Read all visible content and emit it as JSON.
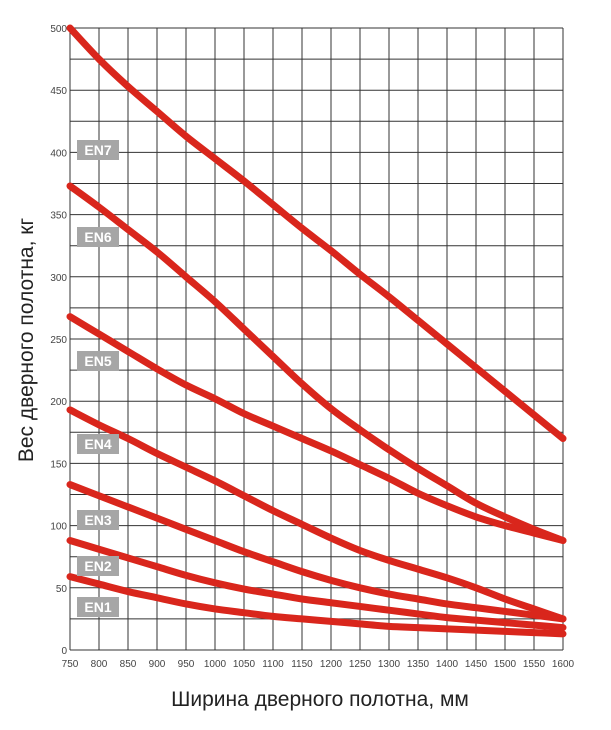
{
  "chart_data": {
    "type": "line",
    "xlabel": "Ширина дверного полотна, мм",
    "ylabel": "Вес дверного полотна, кг",
    "xlim": [
      750,
      1600
    ],
    "ylim": [
      0,
      500
    ],
    "x_ticks": [
      750,
      800,
      850,
      900,
      950,
      1000,
      1050,
      1100,
      1150,
      1200,
      1250,
      1300,
      1350,
      1400,
      1450,
      1500,
      1550,
      1600
    ],
    "y_ticks": [
      0,
      50,
      100,
      150,
      200,
      250,
      300,
      350,
      400,
      450,
      500
    ],
    "grid": true,
    "line_color": "#d9261c",
    "label_color": "#a6a6a6",
    "x": [
      750,
      800,
      850,
      900,
      950,
      1000,
      1050,
      1100,
      1150,
      1200,
      1250,
      1300,
      1350,
      1400,
      1450,
      1500,
      1550,
      1600
    ],
    "series": [
      {
        "name": "EN7",
        "values": [
          500,
          475,
          453,
          433,
          413,
          395,
          377,
          358,
          339,
          321,
          302,
          284,
          265,
          246,
          227,
          208,
          189,
          170
        ]
      },
      {
        "name": "EN6",
        "values": [
          373,
          356,
          338,
          320,
          300,
          280,
          258,
          236,
          214,
          194,
          177,
          161,
          146,
          132,
          118,
          107,
          97,
          88
        ]
      },
      {
        "name": "EN5",
        "values": [
          268,
          254,
          240,
          226,
          213,
          202,
          190,
          180,
          170,
          160,
          149,
          138,
          126,
          116,
          107,
          100,
          94,
          88
        ]
      },
      {
        "name": "EN4",
        "values": [
          193,
          181,
          170,
          158,
          147,
          136,
          124,
          112,
          101,
          90,
          80,
          72,
          65,
          58,
          50,
          41,
          33,
          25
        ]
      },
      {
        "name": "EN3",
        "values": [
          133,
          124,
          115,
          106,
          97,
          88,
          79,
          71,
          63,
          56,
          50,
          45,
          41,
          37,
          34,
          31,
          28,
          25
        ]
      },
      {
        "name": "EN2",
        "values": [
          88,
          81,
          74,
          67,
          60,
          54,
          49,
          45,
          41,
          38,
          35,
          32,
          29,
          26,
          24,
          22,
          20,
          18
        ]
      },
      {
        "name": "EN1",
        "values": [
          59,
          53,
          47,
          42,
          37,
          33,
          30,
          27,
          25,
          23,
          21,
          19,
          18,
          17,
          16,
          15,
          14,
          13
        ]
      }
    ]
  }
}
